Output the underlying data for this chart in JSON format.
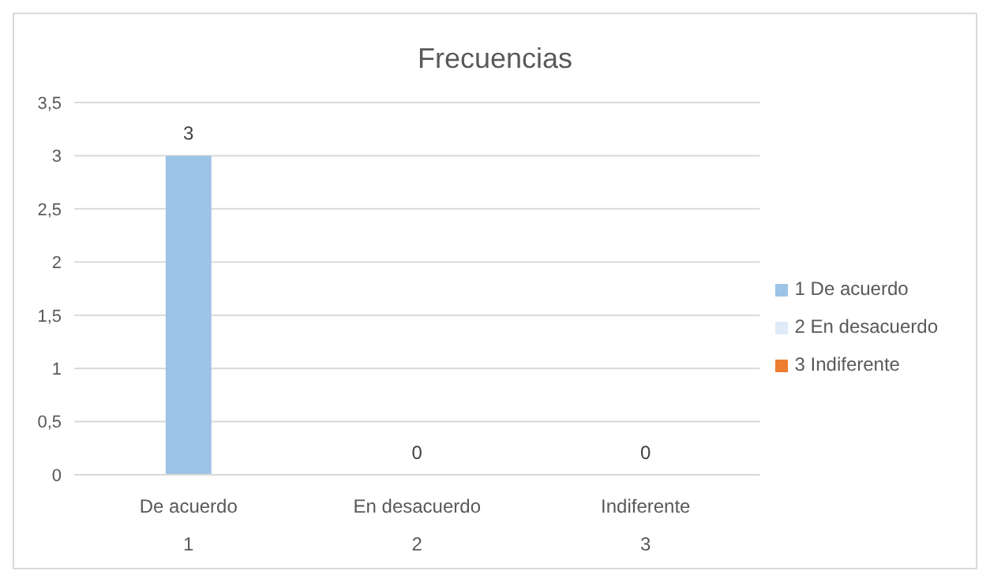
{
  "chart_data": {
    "type": "bar",
    "title": "Frecuencias",
    "categories": [
      "De acuerdo\n1",
      "En desacuerdo\n2",
      "Indiferente\n3"
    ],
    "series": [
      {
        "name": "1 De acuerdo",
        "color": "#9dc3e6",
        "values": [
          3,
          null,
          null
        ]
      },
      {
        "name": "2 En desacuerdo",
        "color": "#deebf7",
        "values": [
          null,
          0,
          null
        ]
      },
      {
        "name": "3 Indiferente",
        "color": "#ed7d31",
        "values": [
          null,
          null,
          0
        ]
      }
    ],
    "stacked": true,
    "ylim": [
      0,
      3.5
    ],
    "yticks": [
      0,
      {
        "value": 0.5,
        "label": "0,5"
      },
      1,
      {
        "value": 1.5,
        "label": "1,5"
      },
      2,
      {
        "value": 2.5,
        "label": "2,5"
      },
      3,
      {
        "value": 3.5,
        "label": "3,5"
      }
    ],
    "grid": "y",
    "legend": "right",
    "data_labels": true
  }
}
